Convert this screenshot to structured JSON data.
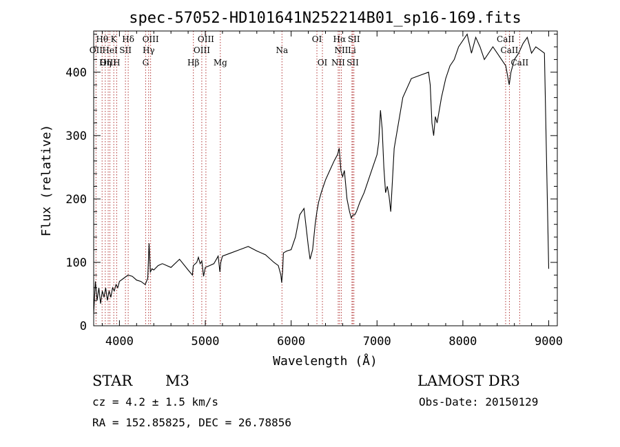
{
  "chart_data": {
    "type": "line",
    "title": "spec-57052-HD101641N252214B01_sp16-169.fits",
    "xlabel": "Wavelength (Å)",
    "ylabel": "Flux (relative)",
    "xlim": [
      3700,
      9100
    ],
    "ylim": [
      0,
      465
    ],
    "xticks": [
      4000,
      5000,
      6000,
      7000,
      8000,
      9000
    ],
    "yticks": [
      0,
      100,
      200,
      300,
      400
    ],
    "grid": false,
    "series": [
      {
        "name": "flux",
        "x": [
          3700,
          3720,
          3740,
          3760,
          3780,
          3800,
          3820,
          3840,
          3860,
          3880,
          3900,
          3920,
          3940,
          3960,
          3980,
          4000,
          4050,
          4100,
          4150,
          4200,
          4250,
          4300,
          4330,
          4345,
          4360,
          4380,
          4400,
          4450,
          4500,
          4600,
          4700,
          4800,
          4850,
          4860,
          4900,
          4920,
          4940,
          4960,
          4980,
          5000,
          5050,
          5100,
          5150,
          5170,
          5180,
          5200,
          5300,
          5400,
          5500,
          5600,
          5700,
          5800,
          5850,
          5880,
          5890,
          5895,
          5900,
          5910,
          5950,
          6000,
          6050,
          6100,
          6150,
          6200,
          6220,
          6250,
          6280,
          6300,
          6320,
          6350,
          6400,
          6450,
          6500,
          6540,
          6560,
          6580,
          6600,
          6620,
          6650,
          6680,
          6700,
          6720,
          6740,
          6760,
          6800,
          6850,
          6900,
          6950,
          7000,
          7020,
          7040,
          7060,
          7080,
          7100,
          7120,
          7140,
          7160,
          7200,
          7300,
          7400,
          7500,
          7600,
          7620,
          7640,
          7660,
          7680,
          7700,
          7750,
          7800,
          7850,
          7900,
          7950,
          8000,
          8050,
          8100,
          8150,
          8200,
          8250,
          8300,
          8350,
          8400,
          8450,
          8500,
          8520,
          8540,
          8560,
          8600,
          8650,
          8700,
          8750,
          8800,
          8850,
          8900,
          8950,
          9000
        ],
        "values": [
          20,
          70,
          40,
          60,
          35,
          55,
          45,
          60,
          40,
          55,
          45,
          60,
          55,
          65,
          60,
          70,
          75,
          80,
          78,
          72,
          70,
          65,
          75,
          130,
          85,
          90,
          88,
          95,
          98,
          92,
          105,
          88,
          80,
          95,
          100,
          108,
          98,
          102,
          78,
          92,
          95,
          98,
          110,
          85,
          100,
          110,
          115,
          120,
          125,
          118,
          112,
          100,
          95,
          80,
          68,
          78,
          85,
          115,
          118,
          120,
          140,
          175,
          185,
          125,
          105,
          120,
          160,
          180,
          195,
          210,
          230,
          245,
          260,
          270,
          280,
          245,
          235,
          245,
          200,
          180,
          170,
          175,
          175,
          180,
          195,
          210,
          230,
          250,
          270,
          290,
          340,
          310,
          250,
          210,
          220,
          205,
          180,
          280,
          360,
          390,
          395,
          400,
          380,
          320,
          300,
          330,
          320,
          360,
          390,
          410,
          420,
          440,
          450,
          460,
          430,
          455,
          440,
          420,
          430,
          440,
          430,
          420,
          410,
          395,
          380,
          400,
          420,
          430,
          445,
          455,
          430,
          440,
          435,
          430,
          90
        ]
      }
    ],
    "line_markers": [
      {
        "label": "Hθ",
        "x": 3798,
        "row": 1
      },
      {
        "label": "K",
        "x": 3934,
        "row": 1
      },
      {
        "label": "Hδ",
        "x": 4102,
        "row": 1
      },
      {
        "label": "OIII",
        "x": 4363,
        "row": 1
      },
      {
        "label": "OIII",
        "x": 5007,
        "row": 1
      },
      {
        "label": "OI",
        "x": 6300,
        "row": 1
      },
      {
        "label": "Hα",
        "x": 6563,
        "row": 1
      },
      {
        "label": "SII",
        "x": 6731,
        "row": 1
      },
      {
        "label": "CaII",
        "x": 8498,
        "row": 1
      },
      {
        "label": "OII",
        "x": 3727,
        "row": 2
      },
      {
        "label": "HeI",
        "x": 3889,
        "row": 2
      },
      {
        "label": "SII",
        "x": 4070,
        "row": 2
      },
      {
        "label": "Hγ",
        "x": 4340,
        "row": 2
      },
      {
        "label": "OIII",
        "x": 4959,
        "row": 2
      },
      {
        "label": "Na",
        "x": 5893,
        "row": 2
      },
      {
        "label": "NII",
        "x": 6584,
        "row": 2
      },
      {
        "label": "Li",
        "x": 6708,
        "row": 2
      },
      {
        "label": "CaII",
        "x": 8542,
        "row": 2
      },
      {
        "label": "OIII",
        "x": 3869,
        "row": 3
      },
      {
        "label": "Hη",
        "x": 3835,
        "row": 3
      },
      {
        "label": "H",
        "x": 3968,
        "row": 3
      },
      {
        "label": "G",
        "x": 4305,
        "row": 3
      },
      {
        "label": "Hβ",
        "x": 4861,
        "row": 3
      },
      {
        "label": "Mg",
        "x": 5175,
        "row": 3
      },
      {
        "label": "OI",
        "x": 6364,
        "row": 3
      },
      {
        "label": "NII",
        "x": 6548,
        "row": 3
      },
      {
        "label": "SII",
        "x": 6717,
        "row": 3
      },
      {
        "label": "CaII",
        "x": 8662,
        "row": 3
      }
    ]
  },
  "info": {
    "object_class": "STAR",
    "subclass": "M3",
    "survey": "LAMOST DR3",
    "cz": "cz = 4.2 ± 1.5 km/s",
    "obs_date": "Obs-Date: 20150129",
    "coords": "RA = 152.85825, DEC =  26.78856"
  },
  "colors": {
    "line": "#000000",
    "marker": "#b03030",
    "axis": "#000000"
  }
}
